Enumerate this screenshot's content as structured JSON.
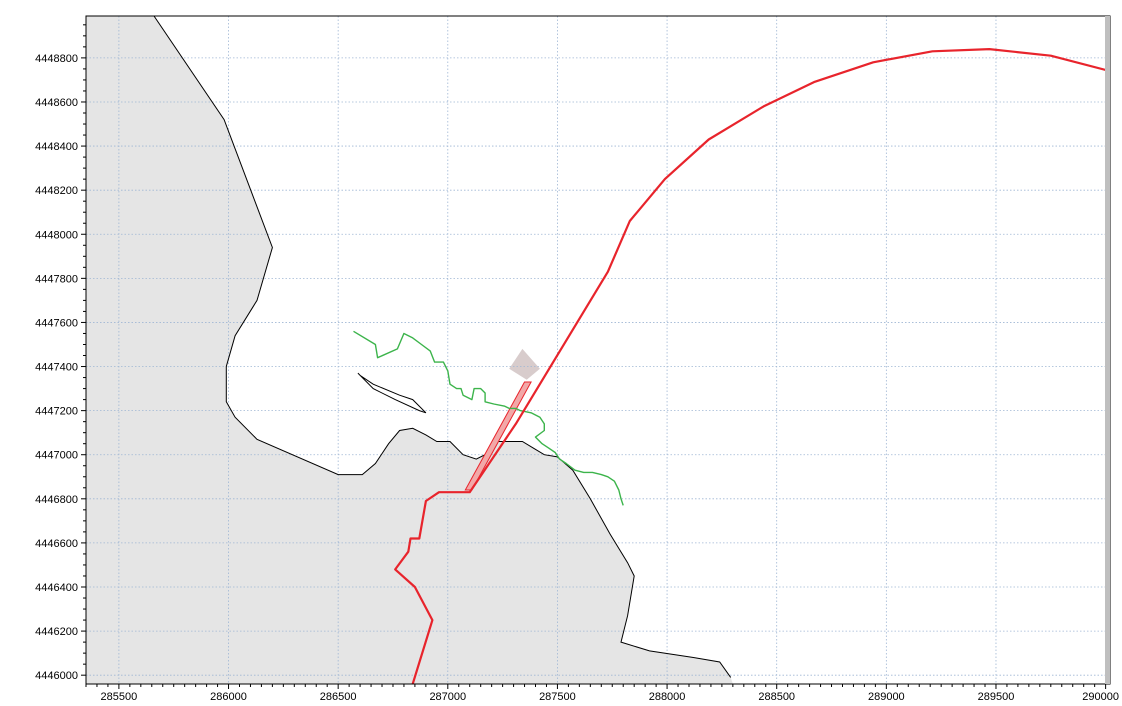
{
  "chart_data": {
    "type": "map",
    "title": "",
    "xlabel": "",
    "ylabel": "",
    "xlim": [
      285350,
      290020
    ],
    "ylim": [
      4445960,
      4448990
    ],
    "grid": true,
    "x_ticks": [
      285500,
      286000,
      286500,
      287000,
      287500,
      288000,
      288500,
      289000,
      289500,
      290000
    ],
    "y_ticks": [
      4446000,
      4446200,
      4446400,
      4446600,
      4446800,
      4447000,
      4447200,
      4447400,
      4447600,
      4447800,
      4448000,
      4448200,
      4448400,
      4448600,
      4448800
    ],
    "x_tick_labels": [
      "285500",
      "286000",
      "286500",
      "287000",
      "287500",
      "288000",
      "288500",
      "289000",
      "289500",
      "290000"
    ],
    "y_tick_labels": [
      "4446000",
      "4446200",
      "4446400",
      "4446600",
      "4446800",
      "4447000",
      "4447200",
      "4447400",
      "4447600",
      "4447800",
      "4448000",
      "4448200",
      "4448400",
      "4448600",
      "4448800"
    ],
    "colors": {
      "land_fill": "#e5e5e5",
      "coastline": "#000000",
      "red_line": "#e8242c",
      "green_line": "#3cb44b",
      "grid": "#9fb6d4",
      "pier_fill": "#f2a8a8",
      "shoal_fill": "#d8cccc"
    },
    "land_polygon": [
      [
        285350,
        4448990
      ],
      [
        285660,
        4448990
      ],
      [
        285980,
        4448520
      ],
      [
        286200,
        4447940
      ],
      [
        286130,
        4447700
      ],
      [
        286030,
        4447540
      ],
      [
        285990,
        4447400
      ],
      [
        285990,
        4447240
      ],
      [
        286030,
        4447170
      ],
      [
        286130,
        4447070
      ],
      [
        286500,
        4446910
      ],
      [
        286610,
        4446910
      ],
      [
        286670,
        4446960
      ],
      [
        286730,
        4447050
      ],
      [
        286780,
        4447110
      ],
      [
        286840,
        4447120
      ],
      [
        286900,
        4447090
      ],
      [
        286950,
        4447060
      ],
      [
        287010,
        4447060
      ],
      [
        287070,
        4447000
      ],
      [
        287130,
        4446980
      ],
      [
        287190,
        4447010
      ],
      [
        287230,
        4447060
      ],
      [
        287280,
        4447060
      ],
      [
        287340,
        4447060
      ],
      [
        287390,
        4447030
      ],
      [
        287440,
        4447000
      ],
      [
        287500,
        4446990
      ],
      [
        287570,
        4446930
      ],
      [
        287650,
        4446800
      ],
      [
        287740,
        4446640
      ],
      [
        287820,
        4446510
      ],
      [
        287850,
        4446450
      ],
      [
        287820,
        4446270
      ],
      [
        287790,
        4446150
      ],
      [
        287920,
        4446110
      ],
      [
        288120,
        4446080
      ],
      [
        288240,
        4446060
      ],
      [
        288290,
        4445990
      ],
      [
        288300,
        4445960
      ],
      [
        285350,
        4445960
      ]
    ],
    "creek_outline": [
      [
        286590,
        4447370
      ],
      [
        286660,
        4447300
      ],
      [
        286760,
        4447250
      ],
      [
        286870,
        4447200
      ],
      [
        286900,
        4447190
      ],
      [
        286840,
        4447250
      ],
      [
        286780,
        4447270
      ],
      [
        286660,
        4447320
      ],
      [
        286600,
        4447360
      ]
    ],
    "red_line": [
      [
        286840,
        4445960
      ],
      [
        286930,
        4446250
      ],
      [
        286850,
        4446400
      ],
      [
        286760,
        4446480
      ],
      [
        286820,
        4446560
      ],
      [
        286830,
        4446620
      ],
      [
        286870,
        4446620
      ],
      [
        286900,
        4446790
      ],
      [
        286960,
        4446830
      ],
      [
        287100,
        4446830
      ],
      [
        287310,
        4447140
      ],
      [
        287730,
        4447830
      ],
      [
        287830,
        4448060
      ],
      [
        287990,
        4448250
      ],
      [
        288190,
        4448430
      ],
      [
        288440,
        4448580
      ],
      [
        288670,
        4448690
      ],
      [
        288940,
        4448780
      ],
      [
        289210,
        4448830
      ],
      [
        289470,
        4448840
      ],
      [
        289750,
        4448810
      ],
      [
        290020,
        4448740
      ]
    ],
    "green_line": [
      [
        286570,
        4447560
      ],
      [
        286670,
        4447500
      ],
      [
        286680,
        4447440
      ],
      [
        286770,
        4447480
      ],
      [
        286800,
        4447550
      ],
      [
        286840,
        4447530
      ],
      [
        286880,
        4447500
      ],
      [
        286920,
        4447470
      ],
      [
        286940,
        4447420
      ],
      [
        286980,
        4447420
      ],
      [
        287000,
        4447380
      ],
      [
        287010,
        4447320
      ],
      [
        287040,
        4447300
      ],
      [
        287060,
        4447300
      ],
      [
        287070,
        4447270
      ],
      [
        287110,
        4447250
      ],
      [
        287120,
        4447300
      ],
      [
        287150,
        4447300
      ],
      [
        287170,
        4447280
      ],
      [
        287170,
        4447240
      ],
      [
        287210,
        4447230
      ],
      [
        287260,
        4447220
      ],
      [
        287280,
        4447210
      ],
      [
        287310,
        4447210
      ],
      [
        287330,
        4447200
      ],
      [
        287380,
        4447190
      ],
      [
        287420,
        4447170
      ],
      [
        287440,
        4447140
      ],
      [
        287440,
        4447110
      ],
      [
        287400,
        4447080
      ],
      [
        287430,
        4447050
      ],
      [
        287460,
        4447030
      ],
      [
        287490,
        4447010
      ],
      [
        287510,
        4446980
      ],
      [
        287540,
        4446960
      ],
      [
        287580,
        4446930
      ],
      [
        287620,
        4446920
      ],
      [
        287660,
        4446920
      ],
      [
        287700,
        4446910
      ],
      [
        287730,
        4446900
      ],
      [
        287760,
        4446880
      ],
      [
        287780,
        4446840
      ],
      [
        287790,
        4446800
      ],
      [
        287800,
        4446770
      ]
    ],
    "pier_polygon": [
      [
        287080,
        4446840
      ],
      [
        287350,
        4447330
      ],
      [
        287380,
        4447330
      ],
      [
        287110,
        4446840
      ]
    ],
    "shoal_polygon": [
      [
        287280,
        4447390
      ],
      [
        287340,
        4447480
      ],
      [
        287420,
        4447390
      ],
      [
        287360,
        4447340
      ]
    ]
  }
}
